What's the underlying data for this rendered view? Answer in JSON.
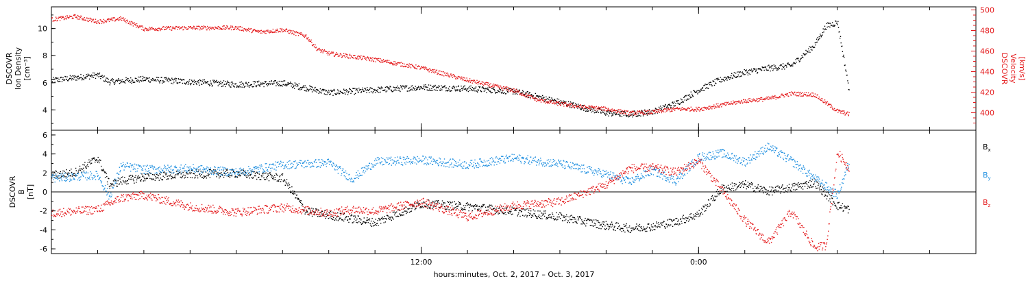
{
  "chart_data": [
    {
      "type": "scatter",
      "panel": "top",
      "ylabel_left": [
        "DSCOVR",
        "Ion Density",
        "[cm⁻³]"
      ],
      "ylabel_right": [
        "DSCOVR",
        "Velocity",
        "[km/s]"
      ],
      "ylim_left": [
        2.5,
        11.6
      ],
      "ylim_right": [
        383,
        503
      ],
      "yticks_left": [
        "4",
        "6",
        "8",
        "10"
      ],
      "yticks_left_values": [
        4,
        6,
        8,
        10
      ],
      "yticks_right": [
        "400",
        "420",
        "440",
        "460",
        "480",
        "500"
      ],
      "yticks_right_values": [
        400,
        420,
        440,
        460,
        480,
        500
      ],
      "x_range_hours": [
        -4,
        36
      ],
      "series": [
        {
          "color": "#000000",
          "axis": "left",
          "x": [
            -4,
            -2,
            -1.5,
            0,
            2,
            4,
            6,
            8,
            9,
            10,
            12,
            14,
            16,
            18,
            20,
            21,
            22,
            23,
            24,
            25,
            26,
            27,
            28,
            29,
            29.5,
            30,
            30.5
          ],
          "y": [
            6.2,
            6.6,
            6.1,
            6.3,
            6.1,
            5.9,
            6.0,
            5.3,
            5.4,
            5.5,
            5.7,
            5.6,
            5.4,
            4.6,
            3.8,
            3.7,
            3.9,
            4.5,
            5.5,
            6.3,
            6.8,
            7.1,
            7.3,
            8.8,
            10.2,
            10.5,
            5.5
          ]
        },
        {
          "color": "#e41a1c",
          "axis": "right",
          "x": [
            -4,
            -3,
            -2,
            -1,
            0,
            2,
            4,
            5,
            6,
            7,
            7.5,
            8,
            10,
            12,
            14,
            15,
            16,
            17,
            18,
            19,
            20,
            21,
            22,
            23,
            24,
            25,
            26,
            27,
            28,
            29,
            30,
            30.5
          ],
          "y": [
            491,
            494,
            489,
            492,
            482,
            483,
            483,
            479,
            481,
            475,
            462,
            458,
            452,
            444,
            432,
            427,
            422,
            413,
            409,
            406,
            404,
            400,
            401,
            404,
            404,
            408,
            412,
            414,
            419,
            418,
            402,
            399
          ]
        }
      ]
    },
    {
      "type": "scatter",
      "panel": "bottom",
      "ylabel": [
        "DSCOVR",
        "B",
        "[nT]"
      ],
      "ylim": [
        -6.5,
        6.5
      ],
      "yticks": [
        "-6",
        "-4",
        "-2",
        "0",
        "2",
        "4",
        "6"
      ],
      "yticks_values": [
        -6,
        -4,
        -2,
        0,
        2,
        4,
        6
      ],
      "x_range_hours": [
        -4,
        36
      ],
      "series": [
        {
          "name": "Bx",
          "label_main": "B",
          "label_sub": "x",
          "color": "#000000",
          "x": [
            -4,
            -3,
            -2,
            -1.5,
            -1,
            0,
            2,
            4,
            6,
            7,
            8,
            10,
            12,
            14,
            16,
            18,
            20,
            21,
            22,
            23,
            24,
            25,
            26,
            27,
            28,
            29,
            30,
            30.5
          ],
          "y": [
            1.8,
            2.1,
            3.6,
            0.8,
            1.2,
            1.6,
            1.9,
            2.0,
            1.5,
            -2.0,
            -2.4,
            -3.2,
            -1.2,
            -1.5,
            -2.0,
            -2.6,
            -3.5,
            -3.8,
            -3.6,
            -3.1,
            -2.3,
            0.4,
            0.8,
            0.1,
            0.5,
            1.0,
            -1.4,
            -1.8
          ]
        },
        {
          "name": "By",
          "label_main": "B",
          "label_sub": "y",
          "color": "#1f8fe0",
          "x": [
            -4,
            -2,
            -1.5,
            -1,
            0,
            2,
            4,
            6,
            8,
            9,
            10,
            12,
            14,
            16,
            18,
            20,
            21,
            22,
            23,
            24,
            25,
            26,
            27,
            28,
            29,
            30,
            30.5
          ],
          "y": [
            1.5,
            1.8,
            -0.5,
            2.8,
            2.4,
            2.5,
            2.1,
            2.9,
            3.1,
            1.4,
            3.2,
            3.4,
            2.9,
            3.6,
            3.0,
            1.9,
            1.1,
            2.3,
            1.2,
            3.7,
            4.1,
            3.2,
            4.8,
            3.3,
            1.5,
            -0.3,
            3.1
          ]
        },
        {
          "name": "Bz",
          "label_main": "B",
          "label_sub": "z",
          "color": "#e41a1c",
          "x": [
            -4,
            -2,
            -1.5,
            -1,
            0,
            2,
            4,
            6,
            8,
            9,
            10,
            12,
            14,
            16,
            18,
            20,
            21,
            22,
            23,
            24,
            25,
            26,
            27,
            28,
            29,
            29.5,
            30,
            30.5
          ],
          "y": [
            -2.2,
            -1.8,
            -1.2,
            -0.6,
            -0.3,
            -1.5,
            -2.1,
            -1.6,
            -2.2,
            -1.8,
            -2.0,
            -1.0,
            -2.6,
            -1.4,
            -1.0,
            0.8,
            2.5,
            2.6,
            2.1,
            3.3,
            0.2,
            -3.0,
            -5.3,
            -2.0,
            -5.8,
            -5.6,
            4.2,
            2.5
          ]
        }
      ]
    }
  ],
  "x_axis": {
    "range_hours": [
      -4,
      36
    ],
    "tick_labels": [
      {
        "label": "12:00",
        "hour": 12
      },
      {
        "label": "0:00",
        "hour": 24
      }
    ],
    "minor_tick_hours": [
      -2,
      0,
      2,
      4,
      6,
      8,
      10,
      12,
      14,
      16,
      18,
      20,
      22,
      24,
      26,
      28,
      30,
      32,
      34,
      36
    ]
  },
  "xlabel": "hours:minutes, Oct.  2, 2017 – Oct.  3, 2017",
  "colors": {
    "black": "#000000",
    "red": "#e41a1c",
    "blue": "#1f8fe0"
  }
}
